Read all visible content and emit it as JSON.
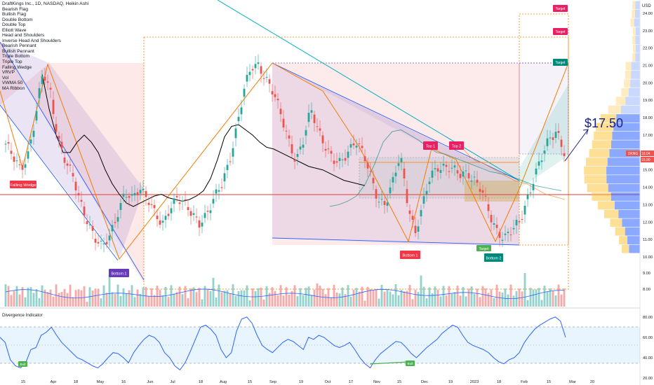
{
  "header": {
    "symbol_title": "DraftKings Inc., 1D, NASDAQ, Heikin Ashi",
    "pattern_list": [
      "Bearish Flag",
      "Bullish Flag",
      "Double Bottom",
      "Double Top",
      "Elliott Wave",
      "Head and Shoulders",
      "Inverse Head And Shoulders",
      "Bearish Pennant",
      "Bullish Pennant",
      "Triple Bottom",
      "Triple Top",
      "Falling Wedge",
      "VRVP",
      "Vol",
      "VWMA 50",
      "MA Ribbon"
    ]
  },
  "annotations": {
    "falling_wedge": "Falling Wedge",
    "bottom1_left": "Bottom 1",
    "bottom1_mid": "Bottom 1",
    "bottom2": "Bottom 2",
    "top1": "Top 1",
    "top2": "Top 2",
    "target_low": "Target",
    "target_1": "Target",
    "target_2": "Target",
    "target_3": "Target",
    "price_target": "$17.50",
    "currency": "USD",
    "symbol_tag": "DKNG",
    "last_price": "16.04",
    "prev_price": "15.90"
  },
  "colors": {
    "up": "#26a69a",
    "down": "#ef5350",
    "wedge_fill": "#b39ddb",
    "orange": "#f57c00",
    "blue_line": "#2962ff",
    "cyan_line": "#00acc1",
    "target_bg": "#e91e63",
    "teal_target": "#00897b",
    "falling_wedge_bg": "#f23645",
    "bottom_purple": "#673ab7",
    "vrvp_blue": "#2962ff",
    "vrvp_yellow": "#fbc02d",
    "osc_line": "#2962ff"
  },
  "chart_data": [
    {
      "type": "candlestick",
      "title": "DraftKings Inc., 1D, NASDAQ, Heikin Ashi",
      "y_axis_ticks": [
        "24.00",
        "23.00",
        "22.00",
        "21.00",
        "20.00",
        "19.00",
        "18.00",
        "17.00",
        "16.00",
        "15.00",
        "14.00",
        "13.00",
        "12.00",
        "11.00",
        "10.00"
      ],
      "ylim": [
        9.8,
        24.6
      ],
      "x_axis_ticks": [
        "15",
        "Apr",
        "18",
        "May",
        "16",
        "Jun",
        "Jul",
        "18",
        "Aug",
        "15",
        "Sep",
        "19",
        "Oct",
        "17",
        "Nov",
        "15",
        "Dec",
        "19",
        "2023",
        "18",
        "Feb",
        "15",
        "Mar",
        "20"
      ],
      "series": [
        {
          "name": "Price (approx. close)",
          "values": [
            16.5,
            15.6,
            15.0,
            16.0,
            18.0,
            20.5,
            19.5,
            17.0,
            15.5,
            14.5,
            13.2,
            12.2,
            11.0,
            10.4,
            11.3,
            12.6,
            13.6,
            13.2,
            14.0,
            13.6,
            12.5,
            11.6,
            12.8,
            13.6,
            13.0,
            12.3,
            12.0,
            12.6,
            13.3,
            14.0,
            15.5,
            17.5,
            19.5,
            20.8,
            21.1,
            20.3,
            19.3,
            18.0,
            16.8,
            15.6,
            16.6,
            18.4,
            17.4,
            16.4,
            15.4,
            15.3,
            16.2,
            16.8,
            15.8,
            14.6,
            13.4,
            13.1,
            14.2,
            15.8,
            13.2,
            11.4,
            12.8,
            14.6,
            15.3,
            15.2,
            14.9,
            14.7,
            15.0,
            14.4,
            13.6,
            12.4,
            11.6,
            11.1,
            11.4,
            12.0,
            13.4,
            14.6,
            15.6,
            16.8,
            17.4,
            16.0
          ]
        },
        {
          "name": "VWMA 50",
          "values": [
            20.5,
            18.5,
            17.0,
            16.0,
            16.0,
            16.6,
            17.0,
            16.6,
            16.0,
            15.0,
            14.2,
            13.6,
            13.1,
            12.9,
            13.1,
            13.3,
            13.5,
            13.6,
            13.4,
            13.3,
            13.2,
            13.3,
            13.5,
            13.8,
            14.5,
            15.6,
            16.9,
            17.5,
            17.6,
            17.3,
            17.0,
            16.6,
            16.3,
            16.2,
            16.0,
            15.8,
            15.6,
            15.4,
            15.2,
            15.1,
            15.0,
            14.8,
            14.6,
            14.4,
            14.3,
            14.2,
            14.1
          ]
        }
      ],
      "levels": {
        "resistance_mid": 14.8,
        "support_red": 13.7,
        "price_target": 17.5,
        "targets": [
          24.4,
          23.0,
          21.4
        ]
      }
    },
    {
      "type": "bar",
      "title": "Vol",
      "y_axis_ticks": [
        "9.00",
        "8.00"
      ],
      "note": "volume bars, green/red by candle direction"
    },
    {
      "type": "line",
      "title": "Divergence Indicator",
      "y_axis_ticks": [
        "80.00",
        "60.00",
        "40.00",
        "20.00"
      ],
      "ylim": [
        18,
        84
      ],
      "band": [
        33,
        71
      ],
      "series": [
        {
          "name": "Divergence Indicator",
          "values": [
            60,
            55,
            38,
            32,
            30,
            35,
            48,
            50,
            62,
            65,
            70,
            62,
            55,
            50,
            45,
            40,
            38,
            35,
            32,
            30,
            34,
            40,
            45,
            44,
            40,
            35,
            45,
            52,
            58,
            62,
            60,
            55,
            45,
            40,
            32,
            28,
            35,
            46,
            58,
            70,
            72,
            68,
            62,
            48,
            40,
            45,
            66,
            78,
            80,
            74,
            62,
            52,
            48,
            45,
            50,
            55,
            58,
            56,
            52,
            48,
            60,
            58,
            62,
            60,
            56,
            52,
            50,
            52,
            55,
            48,
            40,
            34,
            30,
            38,
            44,
            48,
            52,
            56,
            55,
            50,
            44,
            40,
            45,
            50,
            54,
            58,
            64,
            68,
            72,
            70,
            62,
            55,
            52,
            50,
            48,
            45,
            40,
            36,
            34,
            38,
            40,
            45,
            55,
            62,
            68,
            72,
            75,
            78,
            80,
            76,
            60
          ]
        }
      ],
      "labels": {
        "bull_left": "Bull",
        "bull_right": "Bull"
      }
    }
  ]
}
